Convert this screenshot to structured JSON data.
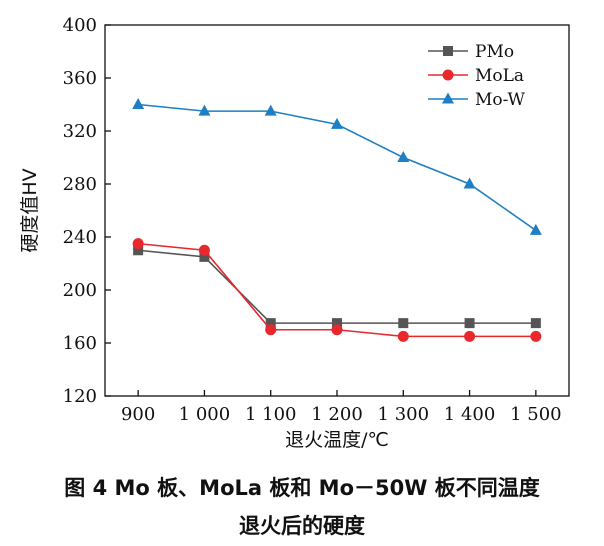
{
  "chart_data": {
    "type": "line",
    "x": [
      900,
      1000,
      1100,
      1200,
      1300,
      1400,
      1500
    ],
    "x_tick_labels": [
      "900",
      "1 000",
      "1 100",
      "1 200",
      "1 300",
      "1 400",
      "1 500"
    ],
    "xlabel": "退火温度/℃",
    "ylabel": "硬度值HV",
    "ylim": [
      120,
      400
    ],
    "y_ticks": [
      120,
      160,
      200,
      240,
      280,
      320,
      360,
      400
    ],
    "series": [
      {
        "name": "PMo",
        "color": "#555555",
        "marker": "square",
        "values": [
          230,
          225,
          175,
          175,
          175,
          175,
          175
        ]
      },
      {
        "name": "MoLa",
        "color": "#e8282d",
        "marker": "circle",
        "values": [
          235,
          230,
          170,
          170,
          165,
          165,
          165
        ]
      },
      {
        "name": "Mo-W",
        "color": "#1e7fc2",
        "marker": "triangle",
        "values": [
          340,
          335,
          335,
          325,
          300,
          280,
          245
        ]
      }
    ],
    "legend_position": "top-right",
    "grid": false
  },
  "caption": {
    "line1": "图 4    Mo 板、MoLa 板和 Mo－50W 板不同温度",
    "line2": "退火后的硬度"
  }
}
